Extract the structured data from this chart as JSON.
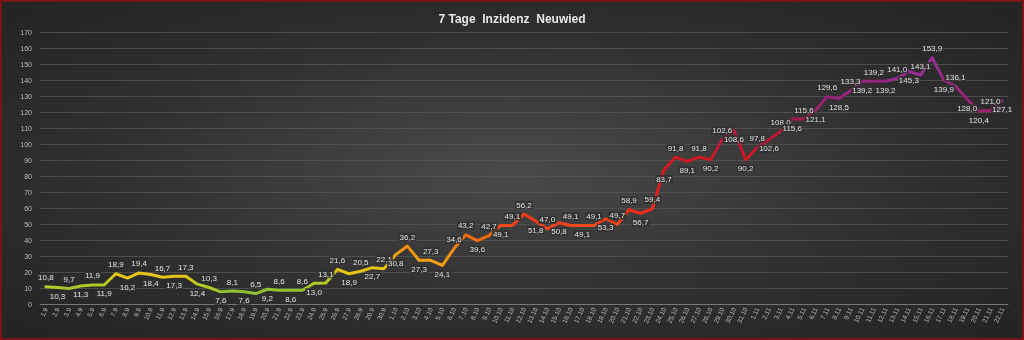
{
  "chart_data": {
    "type": "line",
    "title": "7 Tage  Inzidenz  Neuwied",
    "categories": [
      "1.9",
      "2.9",
      "3.9",
      "4.9",
      "5.9",
      "6.9",
      "7.9",
      "8.9",
      "9.9",
      "10.9",
      "11.9",
      "12.9",
      "13.9",
      "14.9",
      "15.9",
      "16.9",
      "17.9",
      "18.9",
      "19.9",
      "20.9",
      "21.9",
      "22.9",
      "23.9",
      "24.9",
      "25.9",
      "26.9",
      "27.9",
      "28.9",
      "29.9",
      "30.9",
      "1.10",
      "2.10",
      "3.10",
      "4.10",
      "5.10",
      "6.10",
      "7.10",
      "8.10",
      "9.10",
      "10.10",
      "11.10",
      "12.10",
      "13.10",
      "14.10",
      "15.10",
      "16.10",
      "17.10",
      "18.10",
      "19.10",
      "20.10",
      "21.10",
      "22.10",
      "23.10",
      "24.10",
      "25.10",
      "26.10",
      "27.10",
      "28.10",
      "29.10",
      "30.10",
      "31.10",
      "1.11",
      "2.11",
      "3.11",
      "4.11",
      "5.11",
      "6.11",
      "7.11",
      "8.11",
      "9.11",
      "10.11",
      "11.11",
      "12.11",
      "13.11",
      "14.11",
      "15.11",
      "16.11",
      "17.11",
      "18.11",
      "19.11",
      "20.11",
      "21.11",
      "22.11"
    ],
    "series": [
      {
        "values": [
          10.8,
          10.3,
          9.7,
          11.3,
          11.9,
          11.9,
          18.9,
          16.2,
          19.4,
          18.4,
          16.7,
          17.3,
          17.3,
          12.4,
          10.3,
          7.6,
          8.1,
          7.6,
          6.5,
          9.2,
          8.6,
          8.6,
          8.6,
          13.0,
          13.1,
          21.6,
          18.9,
          20.5,
          22.7,
          22.1,
          30.8,
          36.2,
          27.3,
          27.3,
          24.1,
          34.6,
          43.2,
          39.6,
          42.7,
          49.1,
          49.1,
          56.2,
          51.8,
          47.0,
          50.8,
          49.1,
          49.1,
          49.1,
          53.3,
          49.7,
          58.9,
          56.7,
          59.4,
          83.7,
          91.8,
          89.1,
          91.8,
          90.2,
          102.6,
          108.6,
          90.2,
          97.8,
          102.6,
          108.0,
          115.6,
          115.6,
          121.1,
          129.6,
          128.5,
          133.3,
          139.2,
          139.2,
          139.2,
          141.0,
          145.3,
          143.1,
          153.9,
          139.9,
          136.1,
          128.0,
          120.4,
          121.0,
          127.1
        ],
        "value_labels": [
          "10,8",
          "10,3",
          "9,7",
          "11,3",
          "11,9",
          "11,9",
          "18,9",
          "16,2",
          "19,4",
          "18,4",
          "16,7",
          "17,3",
          "17,3",
          "12,4",
          "10,3",
          "7,6",
          "8,1",
          "7,6",
          "6,5",
          "9,2",
          "8,6",
          "8,6",
          "8,6",
          "13,0",
          "13,1",
          "21,6",
          "18,9",
          "20,5",
          "22,7",
          "22,1",
          "30,8",
          "36,2",
          "27,3",
          "27,3",
          "24,1",
          "34,6",
          "43,2",
          "39,6",
          "42,7",
          "49,1",
          "49,1",
          "56,2",
          "51,8",
          "47,0",
          "50,8",
          "49,1",
          "49,1",
          "49,1",
          "53,3",
          "49,7",
          "58,9",
          "56,7",
          "59,4",
          "83,7",
          "91,8",
          "89,1",
          "91,8",
          "90,2",
          "102,6",
          "108,6",
          "90,2",
          "97,8",
          "102,6",
          "108,0",
          "115,6",
          "115,6",
          "121,1",
          "129,6",
          "128,5",
          "133,3",
          "139,2",
          "139,2",
          "139,2",
          "141,0",
          "145,3",
          "143,1",
          "153,9",
          "139,9",
          "136,1",
          "128,0",
          "120,4",
          "121,0",
          "127,1"
        ],
        "colors": [
          "#b4c826",
          "#b4c826",
          "#9cc22e",
          "#b4c826",
          "#b4c826",
          "#b4c826",
          "#e6c414",
          "#e6c414",
          "#e6c414",
          "#e6c414",
          "#e6c414",
          "#e6c414",
          "#e6c414",
          "#b4c826",
          "#b4c826",
          "#8fc031",
          "#8fc031",
          "#8fc031",
          "#8fc031",
          "#8fc031",
          "#8fc031",
          "#8fc031",
          "#8fc031",
          "#b4c826",
          "#b4c826",
          "#e6c414",
          "#e6c414",
          "#e6c414",
          "#e6c414",
          "#e6c414",
          "#f0a010",
          "#f08a10",
          "#f0a010",
          "#f0a010",
          "#f0a010",
          "#f08a10",
          "#f06a10",
          "#f07010",
          "#f06a10",
          "#f04818",
          "#f04818",
          "#f03818",
          "#f03818",
          "#f04818",
          "#f03818",
          "#f04818",
          "#f04818",
          "#f04818",
          "#f03818",
          "#f04818",
          "#ee2a18",
          "#ee2a18",
          "#ee2a18",
          "#d81820",
          "#d01820",
          "#d01820",
          "#d01820",
          "#d01820",
          "#b81838",
          "#b81838",
          "#d01820",
          "#c81828",
          "#b81838",
          "#b81838",
          "#a81850",
          "#a81850",
          "#a0206a",
          "#9a2078",
          "#9a2078",
          "#962480",
          "#962480",
          "#962480",
          "#962480",
          "#9a2c98",
          "#9a2c98",
          "#9a2c98",
          "#9a30a0",
          "#962480",
          "#962480",
          "#9a2078",
          "#a0206a",
          "#a0206a",
          "#9a2078"
        ]
      }
    ],
    "ylim": [
      0,
      170
    ],
    "yticks": [
      0,
      10,
      20,
      30,
      40,
      50,
      60,
      70,
      80,
      90,
      100,
      110,
      120,
      130,
      140,
      150,
      160,
      170
    ],
    "grid": "y",
    "marker": "none",
    "line_style": "solid"
  }
}
